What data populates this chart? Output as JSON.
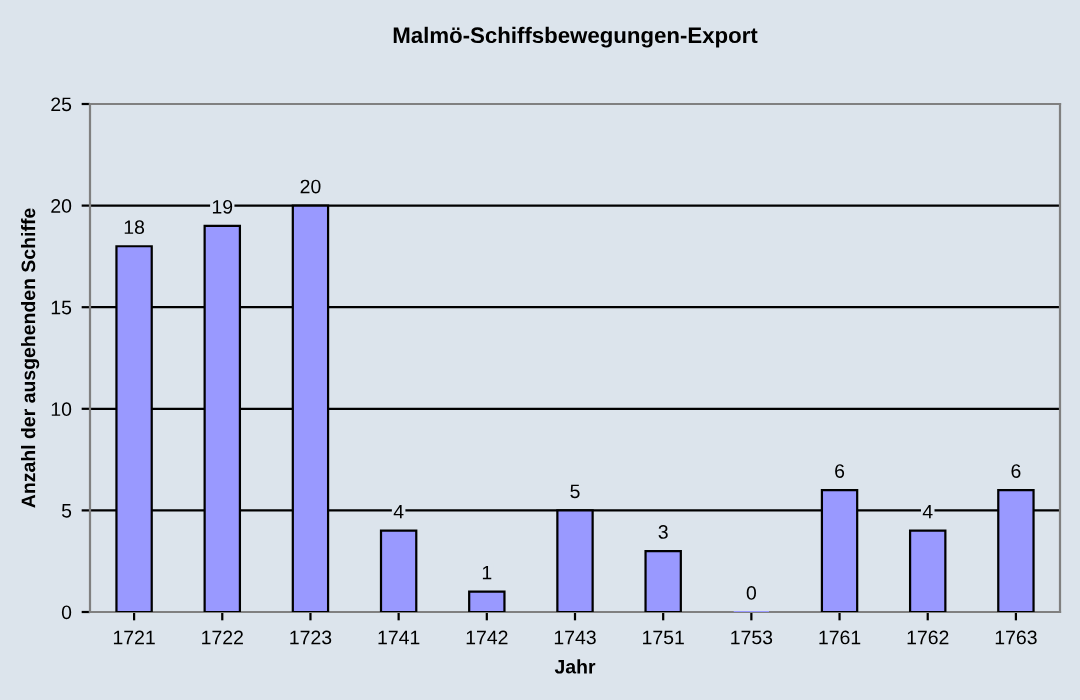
{
  "chart_data": {
    "type": "bar",
    "title": "Malmö-Schiffsbewegungen-Export",
    "xlabel": "Jahr",
    "ylabel": "Anzahl der ausgehenden Schiffe",
    "categories": [
      "1721",
      "1722",
      "1723",
      "1741",
      "1742",
      "1743",
      "1751",
      "1753",
      "1761",
      "1762",
      "1763"
    ],
    "values": [
      18,
      19,
      20,
      4,
      1,
      5,
      3,
      0,
      6,
      4,
      6
    ],
    "color": "#9999ff",
    "ylim": [
      0,
      25
    ],
    "yticks": [
      0,
      5,
      10,
      15,
      20,
      25
    ],
    "grid": "y",
    "data_labels": true,
    "legend": false
  }
}
